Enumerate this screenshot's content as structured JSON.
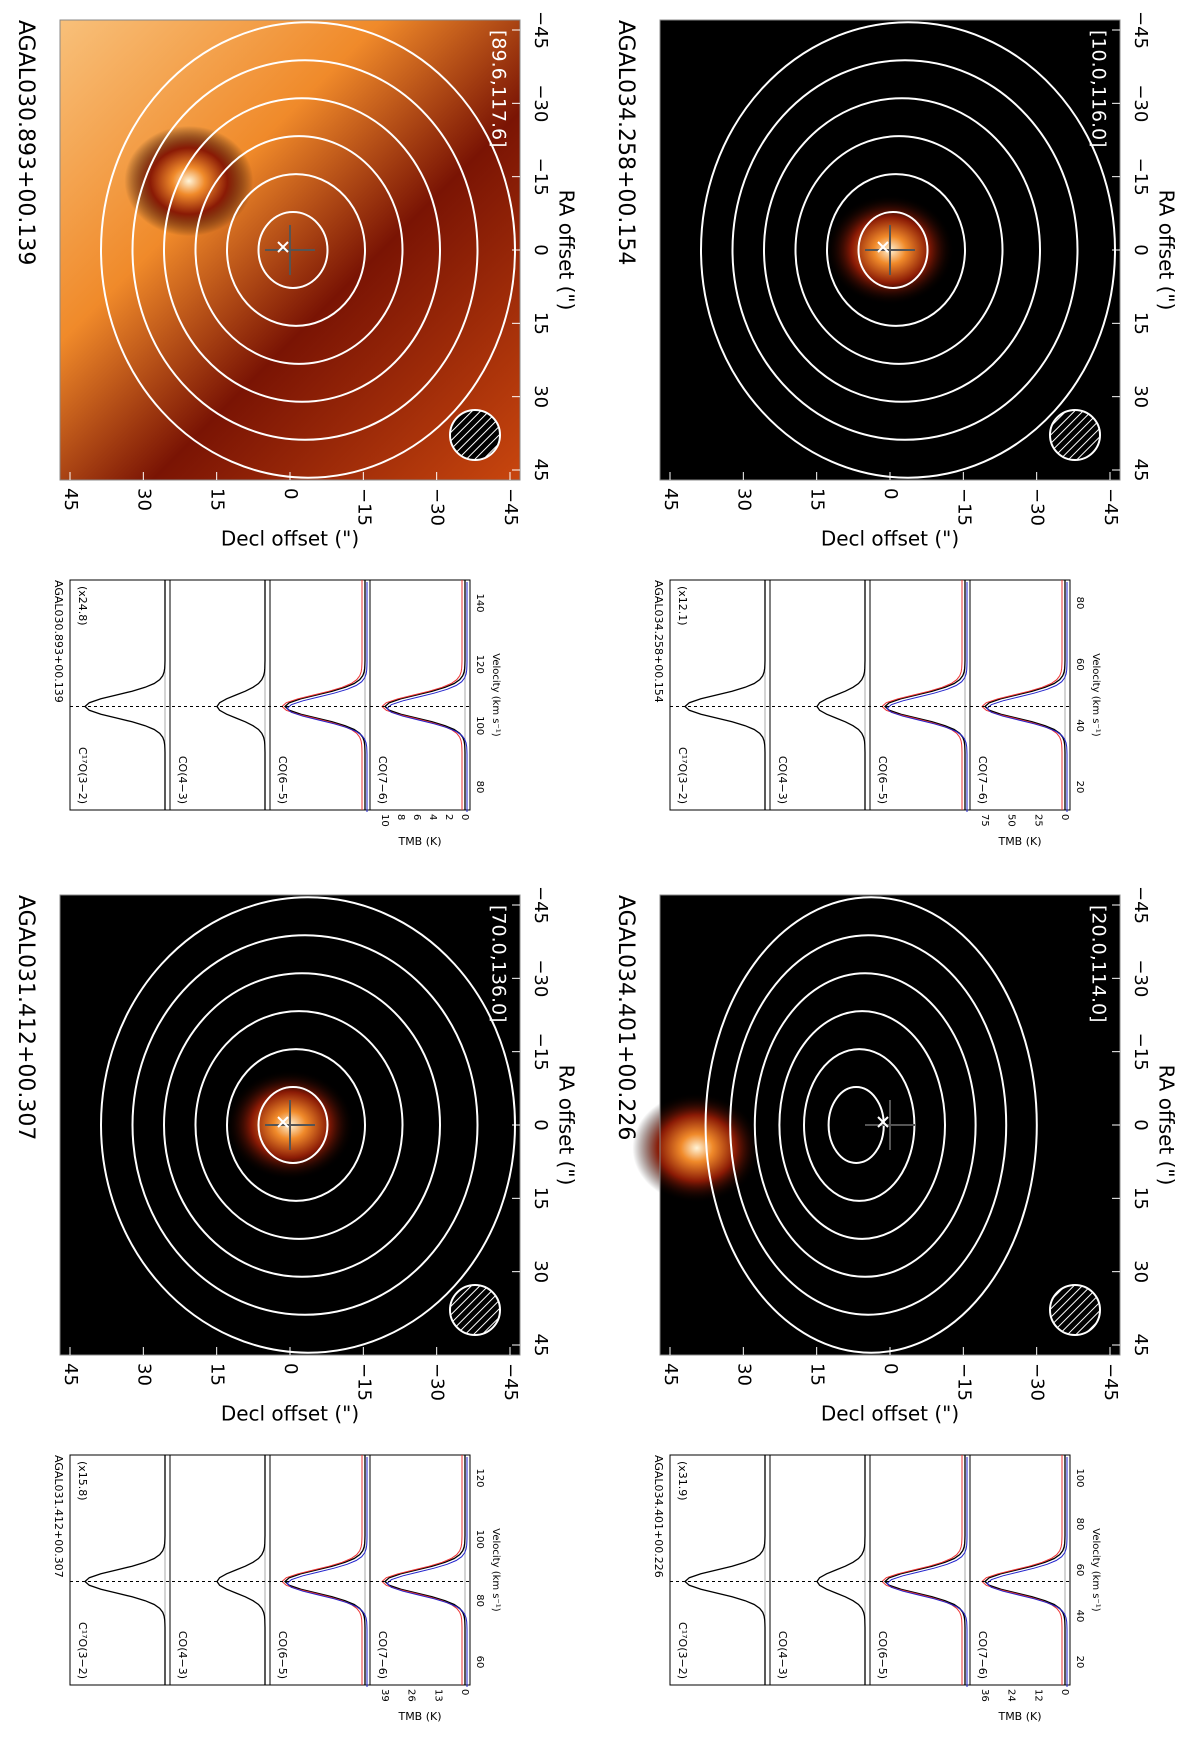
{
  "panels": [
    {
      "title": "AGAL030.893+00.139",
      "box": "[89.6,117.6]",
      "spectra_title": "AGAL030.893+00.139",
      "scale": "(x24.8)",
      "tmb_ticks": [
        "10",
        "8",
        "6",
        "4",
        "2",
        "0"
      ],
      "velocity_ticks": [
        "80",
        "100",
        "120",
        "140"
      ]
    },
    {
      "title": "AGAL031.412+00.307",
      "box": "[70.0,136.0]",
      "spectra_title": "AGAL031.412+00.307",
      "scale": "(x15.8)",
      "tmb_ticks": [
        "39",
        "26",
        "13",
        "0"
      ],
      "velocity_ticks": [
        "60",
        "80",
        "100",
        "120"
      ]
    },
    {
      "title": "AGAL034.258+00.154",
      "box": "[10.0,116.0]",
      "spectra_title": "AGAL034.258+00.154",
      "scale": "(x12.1)",
      "tmb_ticks": [
        "75",
        "50",
        "25",
        "0"
      ],
      "velocity_ticks": [
        "20",
        "40",
        "60",
        "80"
      ]
    },
    {
      "title": "AGAL034.401+00.226",
      "box": "[20.0,114.0]",
      "spectra_title": "AGAL034.401+00.226",
      "scale": "(x31.9)",
      "tmb_ticks": [
        "36",
        "24",
        "12",
        "0"
      ],
      "velocity_ticks": [
        "20",
        "40",
        "60",
        "80",
        "100"
      ]
    }
  ],
  "axes": {
    "decl_label": "Decl offset (\")",
    "ra_label": "RA offset (\")",
    "decl_ticks": [
      "45",
      "30",
      "15",
      "0",
      "−15",
      "−30",
      "−45"
    ],
    "ra_ticks": [
      "45",
      "30",
      "15",
      "0",
      "−15",
      "−30",
      "−45"
    ],
    "lines": [
      "C¹⁷O(3−2)",
      "CO(4−3)",
      "CO(6−5)",
      "CO(7−6)"
    ],
    "tmb_label": "TMB (K)",
    "velocity_label": "Velocity (km s⁻¹)"
  }
}
